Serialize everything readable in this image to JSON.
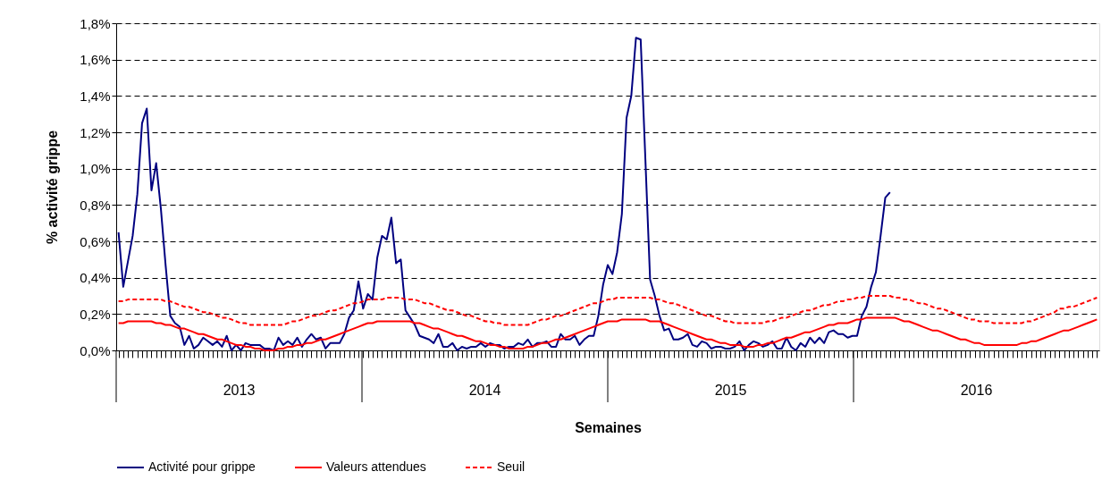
{
  "chart_data": {
    "type": "line",
    "xlabel": "Semaines",
    "ylabel": "% activité grippe",
    "categories": [
      null,
      null,
      null,
      null,
      null,
      null,
      null,
      null,
      null,
      null,
      null,
      null,
      null,
      null,
      null,
      null,
      null,
      null,
      null,
      null,
      null,
      null,
      null,
      null,
      null,
      null,
      null,
      null,
      null,
      null,
      null,
      null,
      null,
      null,
      null,
      null,
      null,
      null,
      null,
      null,
      null,
      null,
      null,
      null,
      null,
      null,
      null,
      null,
      null,
      null,
      null,
      null,
      null,
      null,
      null,
      null,
      null,
      null,
      null,
      null,
      null,
      null,
      null,
      null,
      null,
      null,
      null,
      null,
      null,
      null,
      null,
      null,
      null,
      null,
      null,
      null,
      null,
      null,
      null,
      null,
      null,
      null,
      null,
      null,
      null,
      null,
      null,
      null,
      null,
      null,
      null,
      null,
      null,
      null,
      null,
      null,
      null,
      null,
      null,
      null,
      null,
      null,
      null,
      null,
      null,
      null,
      null,
      null,
      null,
      null,
      null,
      null,
      null,
      null,
      null,
      null,
      null,
      null,
      null,
      null,
      null,
      null,
      null,
      null,
      null,
      null,
      null,
      null,
      null,
      null,
      null,
      null,
      null,
      null,
      null,
      null,
      null,
      null,
      null,
      null,
      null,
      null,
      null,
      null,
      null,
      null,
      null,
      null,
      null,
      null,
      null,
      null,
      null,
      null,
      null,
      null,
      null,
      null,
      null,
      null,
      null,
      null,
      null,
      null,
      null,
      null,
      null,
      null,
      null,
      null,
      null,
      null,
      null,
      null,
      null,
      null,
      null,
      null,
      null,
      null,
      null,
      null,
      null,
      null,
      null,
      null,
      null,
      null,
      null,
      null,
      null,
      null,
      null,
      null,
      null,
      null,
      null,
      null,
      null,
      null,
      null,
      null,
      null,
      null,
      null,
      null,
      null,
      null,
      null
    ],
    "ylim": [
      0,
      1.8
    ],
    "yticks": [
      {
        "value": 0,
        "label": "0,0%"
      },
      {
        "value": 0.2,
        "label": "0,2%"
      },
      {
        "value": 0.4,
        "label": "0,4%"
      },
      {
        "value": 0.6,
        "label": "0,6%"
      },
      {
        "value": 0.8,
        "label": "0,8%"
      },
      {
        "value": 1.0,
        "label": "1,0%"
      },
      {
        "value": 1.2,
        "label": "1,2%"
      },
      {
        "value": 1.4,
        "label": "1,4%"
      },
      {
        "value": 1.6,
        "label": "1,6%"
      },
      {
        "value": 1.8,
        "label": "1,8%"
      }
    ],
    "tick_labels": "y",
    "grid": "y",
    "legend": "bottom",
    "marker": "none",
    "annotations": [
      "2013",
      "2014",
      "2015",
      "2016"
    ],
    "series": [
      {
        "name": "Activité pour grippe",
        "color": "#000080",
        "line_style": "solid",
        "values": [
          0.65,
          0.35,
          0.49,
          0.63,
          0.86,
          1.25,
          1.33,
          0.88,
          1.03,
          0.78,
          0.47,
          0.19,
          0.15,
          0.13,
          0.03,
          0.08,
          0.01,
          0.03,
          0.07,
          0.05,
          0.03,
          0.05,
          0.02,
          0.08,
          0,
          0.03,
          0,
          0.04,
          0.03,
          0.03,
          0.03,
          0.01,
          0.01,
          0,
          0.07,
          0.03,
          0.05,
          0.03,
          0.07,
          0.02,
          0.06,
          0.09,
          0.06,
          0.07,
          0.01,
          0.04,
          0.04,
          0.04,
          0.09,
          0.18,
          0.22,
          0.38,
          0.23,
          0.31,
          0.28,
          0.51,
          0.63,
          0.61,
          0.73,
          0.48,
          0.5,
          0.22,
          0.18,
          0.14,
          0.08,
          0.07,
          0.06,
          0.04,
          0.09,
          0.02,
          0.02,
          0.04,
          0,
          0.02,
          0.01,
          0.02,
          0.02,
          0.04,
          0.02,
          0.04,
          0.03,
          0.03,
          0.01,
          0.02,
          0.02,
          0.04,
          0.03,
          0.06,
          0.02,
          0.04,
          0.04,
          0.05,
          0.02,
          0.02,
          0.09,
          0.06,
          0.06,
          0.08,
          0.03,
          0.06,
          0.08,
          0.08,
          0.19,
          0.36,
          0.47,
          0.42,
          0.54,
          0.75,
          1.28,
          1.4,
          1.72,
          1.71,
          1.05,
          0.39,
          0.3,
          0.19,
          0.11,
          0.12,
          0.06,
          0.06,
          0.07,
          0.09,
          0.03,
          0.02,
          0.05,
          0.04,
          0.01,
          0.02,
          0.02,
          0.01,
          0.01,
          0.02,
          0.05,
          0,
          0.03,
          0.05,
          0.04,
          0.02,
          0.03,
          0.05,
          0.01,
          0.01,
          0.07,
          0.02,
          0,
          0.04,
          0.02,
          0.07,
          0.04,
          0.07,
          0.04,
          0.1,
          0.11,
          0.09,
          0.09,
          0.07,
          0.08,
          0.08,
          0.19,
          0.24,
          0.35,
          0.43,
          0.63,
          0.84,
          0.87,
          null,
          null,
          null,
          null,
          null,
          null,
          null,
          null,
          null,
          null,
          null,
          null,
          null,
          null,
          null,
          null,
          null,
          null,
          null,
          null,
          null,
          null,
          null,
          null,
          null,
          null,
          null,
          null,
          null,
          null,
          null,
          null,
          null,
          null,
          null,
          null,
          null,
          null,
          null,
          null,
          null,
          null,
          null,
          null
        ]
      },
      {
        "name": "Valeurs attendues",
        "color": "#ff0000",
        "line_style": "solid",
        "values": [
          0.15,
          0.15,
          0.16,
          0.16,
          0.16,
          0.16,
          0.16,
          0.16,
          0.15,
          0.15,
          0.14,
          0.14,
          0.13,
          0.12,
          0.12,
          0.11,
          0.1,
          0.09,
          0.09,
          0.08,
          0.07,
          0.06,
          0.06,
          0.05,
          0.04,
          0.03,
          0.03,
          0.02,
          0.02,
          0.01,
          0.01,
          0,
          0,
          0,
          0.01,
          0.01,
          0.02,
          0.02,
          0.03,
          0.03,
          0.04,
          0.04,
          0.05,
          0.06,
          0.06,
          0.07,
          0.08,
          0.09,
          0.1,
          0.11,
          0.12,
          0.13,
          0.14,
          0.15,
          0.15,
          0.16,
          0.16,
          0.16,
          0.16,
          0.16,
          0.16,
          0.16,
          0.16,
          0.15,
          0.15,
          0.14,
          0.13,
          0.12,
          0.12,
          0.11,
          0.1,
          0.09,
          0.08,
          0.08,
          0.07,
          0.06,
          0.05,
          0.05,
          0.04,
          0.03,
          0.03,
          0.02,
          0.02,
          0.01,
          0.01,
          0.01,
          0.01,
          0.02,
          0.02,
          0.03,
          0.04,
          0.04,
          0.05,
          0.06,
          0.06,
          0.07,
          0.08,
          0.09,
          0.1,
          0.11,
          0.12,
          0.13,
          0.14,
          0.15,
          0.16,
          0.16,
          0.16,
          0.17,
          0.17,
          0.17,
          0.17,
          0.17,
          0.17,
          0.16,
          0.16,
          0.16,
          0.15,
          0.14,
          0.13,
          0.12,
          0.11,
          0.1,
          0.09,
          0.08,
          0.07,
          0.06,
          0.06,
          0.05,
          0.04,
          0.04,
          0.03,
          0.03,
          0.03,
          0.02,
          0.02,
          0.02,
          0.03,
          0.03,
          0.04,
          0.04,
          0.05,
          0.06,
          0.07,
          0.07,
          0.08,
          0.09,
          0.1,
          0.1,
          0.11,
          0.12,
          0.13,
          0.14,
          0.14,
          0.15,
          0.15,
          0.15,
          0.16,
          0.17,
          0.17,
          0.18,
          0.18,
          0.18,
          0.18,
          0.18,
          0.18,
          0.18,
          0.17,
          0.16,
          0.16,
          0.15,
          0.14,
          0.13,
          0.12,
          0.11,
          0.11,
          0.1,
          0.09,
          0.08,
          0.07,
          0.06,
          0.06,
          0.05,
          0.04,
          0.04,
          0.03,
          0.03,
          0.03,
          0.03,
          0.03,
          0.03,
          0.03,
          0.03,
          0.04,
          0.04,
          0.05,
          0.05,
          0.06,
          0.07,
          0.08,
          0.09,
          0.1,
          0.11,
          0.11,
          0.12,
          0.13,
          0.14,
          0.15,
          0.16,
          0.17
        ]
      },
      {
        "name": "Seuil",
        "color": "#ff0000",
        "line_style": "dashed",
        "values": [
          0.27,
          0.27,
          0.28,
          0.28,
          0.28,
          0.28,
          0.28,
          0.28,
          0.28,
          0.28,
          0.27,
          0.27,
          0.26,
          0.25,
          0.24,
          0.24,
          0.23,
          0.22,
          0.21,
          0.21,
          0.2,
          0.19,
          0.18,
          0.18,
          0.17,
          0.16,
          0.15,
          0.15,
          0.14,
          0.14,
          0.14,
          0.14,
          0.14,
          0.14,
          0.14,
          0.14,
          0.15,
          0.16,
          0.16,
          0.17,
          0.18,
          0.19,
          0.19,
          0.2,
          0.21,
          0.22,
          0.22,
          0.23,
          0.24,
          0.25,
          0.26,
          0.26,
          0.27,
          0.28,
          0.28,
          0.28,
          0.28,
          0.29,
          0.29,
          0.29,
          0.29,
          0.28,
          0.28,
          0.28,
          0.27,
          0.26,
          0.26,
          0.25,
          0.24,
          0.23,
          0.22,
          0.22,
          0.21,
          0.2,
          0.19,
          0.19,
          0.18,
          0.17,
          0.16,
          0.16,
          0.15,
          0.15,
          0.14,
          0.14,
          0.14,
          0.14,
          0.14,
          0.14,
          0.15,
          0.16,
          0.17,
          0.17,
          0.18,
          0.19,
          0.19,
          0.2,
          0.21,
          0.22,
          0.23,
          0.24,
          0.25,
          0.26,
          0.26,
          0.27,
          0.28,
          0.28,
          0.29,
          0.29,
          0.29,
          0.29,
          0.29,
          0.29,
          0.29,
          0.29,
          0.28,
          0.28,
          0.27,
          0.26,
          0.26,
          0.25,
          0.24,
          0.23,
          0.22,
          0.21,
          0.2,
          0.19,
          0.19,
          0.18,
          0.17,
          0.16,
          0.16,
          0.15,
          0.15,
          0.15,
          0.15,
          0.15,
          0.15,
          0.15,
          0.16,
          0.16,
          0.17,
          0.18,
          0.18,
          0.19,
          0.2,
          0.21,
          0.22,
          0.22,
          0.23,
          0.24,
          0.25,
          0.25,
          0.26,
          0.27,
          0.27,
          0.28,
          0.28,
          0.29,
          0.29,
          0.3,
          0.3,
          0.3,
          0.3,
          0.3,
          0.3,
          0.29,
          0.29,
          0.28,
          0.28,
          0.27,
          0.26,
          0.26,
          0.25,
          0.24,
          0.23,
          0.23,
          0.22,
          0.21,
          0.2,
          0.19,
          0.18,
          0.17,
          0.17,
          0.16,
          0.16,
          0.16,
          0.15,
          0.15,
          0.15,
          0.15,
          0.15,
          0.15,
          0.15,
          0.16,
          0.16,
          0.17,
          0.18,
          0.19,
          0.2,
          0.21,
          0.23,
          0.23,
          0.24,
          0.24,
          0.25,
          0.26,
          0.27,
          0.28,
          0.29
        ]
      }
    ]
  }
}
